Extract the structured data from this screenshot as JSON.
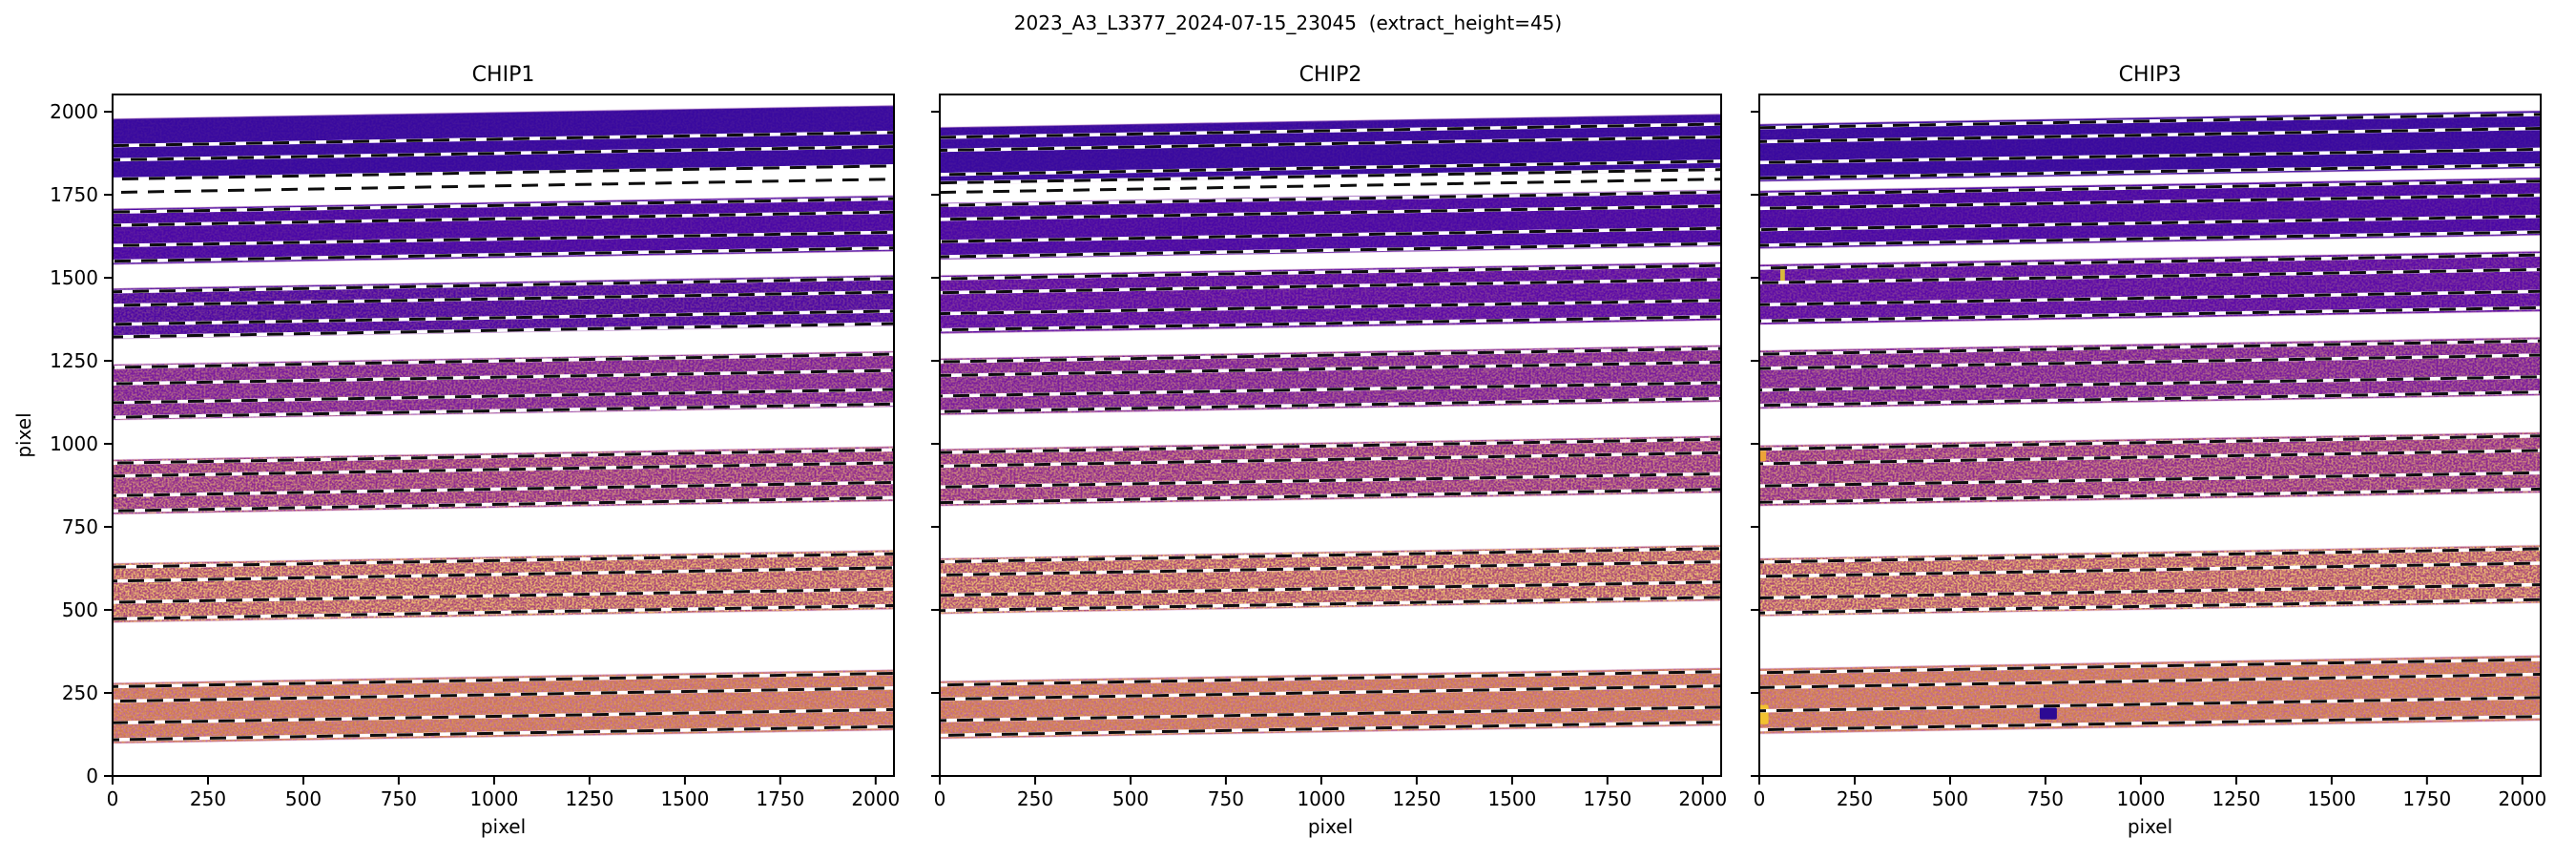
{
  "chart_data": {
    "type": "heatmap",
    "title": "2023_A3_L3377_2024-07-15_23045  (extract_height=45)",
    "description": "Echelle spectrograph order-trace plot: three detector chips shown as 2048x2048 pixel images with colored spectral-order bands (plasma colormap, dark blue at top to orange at bottom) and black/white dashed extraction-boundary lines sloping slightly upward to the right.",
    "extract_height": 45,
    "xlabel": "pixel",
    "ylabel": "pixel",
    "xlim": [
      0,
      2048
    ],
    "ylim": [
      0,
      2052
    ],
    "xticks": [
      0,
      250,
      500,
      750,
      1000,
      1250,
      1500,
      1750,
      2000
    ],
    "yticks": [
      0,
      250,
      500,
      750,
      1000,
      1250,
      1500,
      1750,
      2000
    ],
    "grid": false,
    "legend": false,
    "trace_slope": 40,
    "colors": {
      "background": "#ffffff",
      "spine": "#000000",
      "dash_black": "#0d0d0d",
      "dash_white": "#ffffff",
      "band_fringe": "#d8a6d8"
    },
    "panels": [
      {
        "title": "CHIP1",
        "show_y_tick_labels": true,
        "show_ylabel": true,
        "extra_trace_lines": [
          1757
        ],
        "markers": [],
        "bands": [
          {
            "y_bottom": 1794,
            "y_top": 1979,
            "color": "#39099f",
            "speckle": [
              [
                "o",
                0.05
              ]
            ],
            "lines": [
              1898,
              1855,
              1797
            ]
          },
          {
            "y_bottom": 1540,
            "y_top": 1708,
            "color": "#4a07a6",
            "speckle": [
              [
                "o",
                0.1
              ]
            ],
            "lines": [
              1698,
              1658,
              1597,
              1550
            ]
          },
          {
            "y_bottom": 1316,
            "y_top": 1468,
            "color": "#4e08a4",
            "speckle": [
              [
                "o",
                0.2
              ]
            ],
            "lines": [
              1458,
              1417,
              1360,
              1322
            ]
          },
          {
            "y_bottom": 1072,
            "y_top": 1239,
            "color": "#7a1b9d",
            "speckle": [
              [
                "o",
                0.38
              ]
            ],
            "lines": [
              1230,
              1181,
              1124,
              1080
            ]
          },
          {
            "y_bottom": 788,
            "y_top": 952,
            "color": "#8f288f",
            "speckle": [
              [
                "o",
                0.55
              ],
              [
                "y",
                0.18
              ]
            ],
            "lines": [
              942,
              903,
              844,
              798
            ]
          },
          {
            "y_bottom": 462,
            "y_top": 640,
            "color": "#aa4677",
            "speckle": [
              [
                "o",
                0.82
              ],
              [
                "y",
                0.3
              ]
            ],
            "lines": [
              629,
              587,
              523,
              473
            ]
          },
          {
            "y_bottom": 98,
            "y_top": 280,
            "color": "#cf7a4e",
            "speckle": [
              [
                "p",
                0.7
              ],
              [
                "o",
                0.25
              ],
              [
                "y",
                0.3
              ]
            ],
            "lines": [
              269,
              225,
              160,
              109
            ]
          }
        ]
      },
      {
        "title": "CHIP2",
        "show_y_tick_labels": false,
        "show_ylabel": false,
        "extra_trace_lines": [
          1757
        ],
        "markers": [],
        "bands": [
          {
            "y_bottom": 1782,
            "y_top": 1953,
            "color": "#39099f",
            "speckle": [
              [
                "o",
                0.05
              ]
            ],
            "lines": [
              1923,
              1884,
              1811,
              1786
            ]
          },
          {
            "y_bottom": 1555,
            "y_top": 1725,
            "color": "#4a07a6",
            "speckle": [
              [
                "o",
                0.1
              ]
            ],
            "lines": [
              1718,
              1676,
              1609,
              1563
            ]
          },
          {
            "y_bottom": 1332,
            "y_top": 1507,
            "color": "#5c0aa8",
            "speckle": [
              [
                "o",
                0.2
              ]
            ],
            "lines": [
              1497,
              1455,
              1392,
              1343
            ]
          },
          {
            "y_bottom": 1087,
            "y_top": 1257,
            "color": "#7a1b9d",
            "speckle": [
              [
                "o",
                0.38
              ]
            ],
            "lines": [
              1247,
              1206,
              1144,
              1097
            ]
          },
          {
            "y_bottom": 813,
            "y_top": 984,
            "color": "#8f288f",
            "speckle": [
              [
                "o",
                0.55
              ],
              [
                "y",
                0.18
              ]
            ],
            "lines": [
              974,
              933,
              870,
              823
            ]
          },
          {
            "y_bottom": 488,
            "y_top": 655,
            "color": "#aa4677",
            "speckle": [
              [
                "o",
                0.82
              ],
              [
                "y",
                0.3
              ]
            ],
            "lines": [
              645,
              605,
              544,
              498
            ]
          },
          {
            "y_bottom": 112,
            "y_top": 285,
            "color": "#cf7a4e",
            "speckle": [
              [
                "p",
                0.7
              ],
              [
                "o",
                0.25
              ],
              [
                "y",
                0.3
              ]
            ],
            "lines": [
              274,
              231,
              167,
              122
            ]
          }
        ]
      },
      {
        "title": "CHIP3",
        "show_y_tick_labels": false,
        "show_ylabel": false,
        "extra_trace_lines": [],
        "markers": [
          {
            "x": 735,
            "y": 170,
            "w": 45,
            "h": 36,
            "color": "#2c0a93",
            "name": "saturated-pixel-blob"
          },
          {
            "x": 0,
            "y": 156,
            "w": 24,
            "h": 58,
            "color": "#f2c230",
            "name": "hot-column-streak"
          },
          {
            "x": 0,
            "y": 948,
            "w": 18,
            "h": 42,
            "color": "#eca438",
            "name": "hot-column-streak"
          },
          {
            "x": 55,
            "y": 1486,
            "w": 12,
            "h": 50,
            "color": "#d9b93a",
            "name": "cosmic-ray-streak"
          }
        ],
        "bands": [
          {
            "y_bottom": 1790,
            "y_top": 1963,
            "color": "#39099f",
            "speckle": [
              [
                "o",
                0.05
              ]
            ],
            "lines": [
              1952,
              1910,
              1847,
              1800
            ]
          },
          {
            "y_bottom": 1588,
            "y_top": 1762,
            "color": "#4a07a6",
            "speckle": [
              [
                "o",
                0.1
              ]
            ],
            "lines": [
              1751,
              1709,
              1645,
              1598
            ]
          },
          {
            "y_bottom": 1359,
            "y_top": 1540,
            "color": "#5c0aa8",
            "speckle": [
              [
                "o",
                0.2
              ]
            ],
            "lines": [
              1529,
              1485,
              1419,
              1370
            ]
          },
          {
            "y_bottom": 1106,
            "y_top": 1281,
            "color": "#7a1b9d",
            "speckle": [
              [
                "o",
                0.38
              ]
            ],
            "lines": [
              1270,
              1227,
              1162,
              1116
            ]
          },
          {
            "y_bottom": 813,
            "y_top": 995,
            "color": "#8f288f",
            "speckle": [
              [
                "o",
                0.55
              ],
              [
                "y",
                0.18
              ]
            ],
            "lines": [
              984,
              940,
              873,
              824
            ]
          },
          {
            "y_bottom": 481,
            "y_top": 655,
            "color": "#aa4677",
            "speckle": [
              [
                "o",
                0.82
              ],
              [
                "y",
                0.3
              ]
            ],
            "lines": [
              644,
              601,
              536,
              491
            ]
          },
          {
            "y_bottom": 127,
            "y_top": 323,
            "color": "#cf7a4e",
            "speckle": [
              [
                "p",
                0.7
              ],
              [
                "o",
                0.25
              ],
              [
                "y",
                0.3
              ]
            ],
            "lines": [
              311,
              266,
              196,
              139
            ]
          }
        ]
      }
    ]
  }
}
